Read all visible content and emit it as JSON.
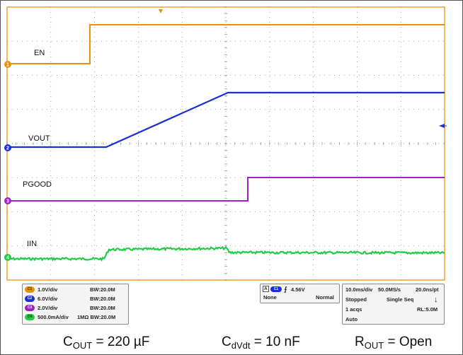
{
  "scope": {
    "channels": [
      {
        "id": "C1",
        "name": "EN",
        "scale": "1.0V/div",
        "bw": "BW:20.0M",
        "color": "#e8920a"
      },
      {
        "id": "C2",
        "name": "VOUT",
        "scale": "6.0V/div",
        "bw": "BW:20.0M",
        "color": "#1a2fd4"
      },
      {
        "id": "C3",
        "name": "PGOOD",
        "scale": "2.0V/div",
        "bw": "BW:20.0M",
        "color": "#a020c8"
      },
      {
        "id": "C4",
        "name": "IIN",
        "scale": "500.0mA/div",
        "bw": "1MΩ BW:20.0M",
        "color": "#22cc44"
      }
    ],
    "markers": [
      "1",
      "2",
      "3",
      "4"
    ],
    "trigger": {
      "source_label": "A",
      "channel": "C1",
      "level": "4.56V",
      "coupling": "None",
      "mode": "Normal"
    },
    "acquisition": {
      "timebase": "10.0ms/div",
      "sample_rate": "50.0MS/s",
      "resolution": "20.0ns/pt",
      "state": "Stopped",
      "sequence": "Single Seq",
      "acqs": "1 acqs",
      "record_length": "RL:5.0M",
      "trigger_mode": "Auto"
    },
    "grid_color": "#8c8c8c",
    "border_color": "#f0a030"
  },
  "captions": {
    "cout_prefix": "C",
    "cout_sub": "OUT",
    "cout_value": " = 220 µF",
    "cdvdt_prefix": "C",
    "cdvdt_sub": "dVdt",
    "cdvdt_value": " = 10 nF",
    "rout_prefix": "R",
    "rout_sub": "OUT",
    "rout_value": " = Open"
  }
}
